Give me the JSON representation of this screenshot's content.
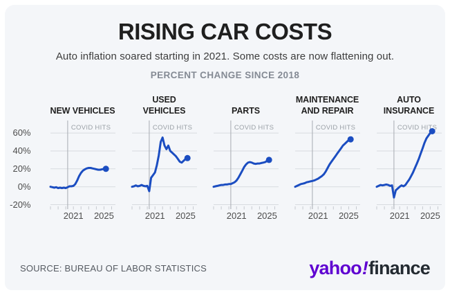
{
  "header": {
    "title": "RISING CAR COSTS",
    "subtitle": "Auto inflation soared starting in 2021. Some costs are now flattening out.",
    "kicker": "PERCENT CHANGE SINCE 2018"
  },
  "footer": {
    "source": "SOURCE: BUREAU OF LABOR STATISTICS",
    "logo_yahoo": "yahoo",
    "logo_bang": "!",
    "logo_finance": "finance"
  },
  "chart_data": {
    "type": "line",
    "layout": "small-multiples",
    "title": "RISING CAR COSTS",
    "subtitle": "PERCENT CHANGE SINCE 2018",
    "x_unit": "year",
    "x": [
      2018,
      2018.25,
      2018.5,
      2018.75,
      2019,
      2019.25,
      2019.5,
      2019.75,
      2020,
      2020.25,
      2020.5,
      2020.75,
      2021,
      2021.25,
      2021.5,
      2021.75,
      2022,
      2022.25,
      2022.5,
      2022.75,
      2023,
      2023.25,
      2023.5,
      2023.75,
      2024,
      2024.25,
      2024.5,
      2024.75,
      2025,
      2025.25
    ],
    "x_axis_range": [
      2018,
      2026.5
    ],
    "x_tick_years": [
      2018,
      2019,
      2020,
      2021,
      2022,
      2023,
      2024,
      2025,
      2026
    ],
    "x_tick_labels": [
      {
        "year": 2021,
        "label": "2021"
      },
      {
        "year": 2025,
        "label": "2025"
      }
    ],
    "y_ticks": [
      {
        "value": 60,
        "label": "60%"
      },
      {
        "value": 40,
        "label": "40%"
      },
      {
        "value": 20,
        "label": "20%"
      },
      {
        "value": 0,
        "label": "0%"
      },
      {
        "value": -20,
        "label": "-20%"
      }
    ],
    "y_plot_range": [
      -25,
      74
    ],
    "annotation": {
      "text": "COVID HITS",
      "year": 2020.25
    },
    "grid": true,
    "colors": {
      "line": "#1b4dc1",
      "grid": "#d8dbe0",
      "covid_line": "#a6aab0",
      "annotation_text": "#9aa0a6",
      "tick_text": "#4c4c4c"
    },
    "series": [
      {
        "name": "NEW VEHICLES",
        "title_lines": [
          "NEW VEHICLES"
        ],
        "values": [
          0,
          -0.5,
          -1,
          -0.5,
          -1.5,
          -1,
          -1.5,
          -1,
          -1.5,
          -0.5,
          0.5,
          0.5,
          1,
          3,
          7,
          12,
          15.5,
          18,
          19.5,
          20.5,
          21,
          21,
          20.5,
          20,
          19.5,
          19,
          19,
          19.5,
          20,
          20
        ]
      },
      {
        "name": "USED VEHICLES",
        "title_lines": [
          "USED VEHICLES"
        ],
        "values": [
          0,
          0.5,
          1.5,
          0.5,
          1,
          2,
          1,
          0.5,
          1,
          -5,
          10,
          13,
          16,
          24,
          35,
          50,
          55,
          46,
          42,
          46,
          40,
          38,
          36,
          34,
          31,
          28,
          27,
          29,
          31,
          32
        ]
      },
      {
        "name": "PARTS",
        "title_lines": [
          "PARTS"
        ],
        "values": [
          0,
          0.5,
          1,
          1.5,
          2,
          2,
          2.5,
          2.5,
          3,
          3,
          4,
          5,
          7,
          10,
          14,
          18,
          22,
          25,
          27,
          27.5,
          27,
          26,
          25.5,
          26,
          26,
          26.5,
          27,
          27.5,
          29,
          30
        ]
      },
      {
        "name": "MAINTENANCE AND REPAIR",
        "title_lines": [
          "MAINTENANCE",
          "AND REPAIR"
        ],
        "values": [
          0,
          1,
          2,
          3,
          3.5,
          4,
          5,
          5.5,
          6,
          6.5,
          7,
          8,
          9,
          10.5,
          12,
          14,
          17,
          21,
          25,
          28,
          31,
          34,
          37,
          40,
          43,
          46,
          48,
          50,
          52,
          53
        ]
      },
      {
        "name": "AUTO INSURANCE",
        "title_lines": [
          "AUTO",
          "INSURANCE"
        ],
        "values": [
          0,
          1,
          2,
          1.5,
          2,
          2.5,
          2,
          1,
          1.5,
          -12,
          -4,
          -2,
          0,
          1.5,
          0.5,
          2,
          5,
          8,
          12,
          16,
          21,
          26,
          31,
          37,
          43,
          49,
          54,
          57,
          60,
          62
        ]
      }
    ]
  }
}
